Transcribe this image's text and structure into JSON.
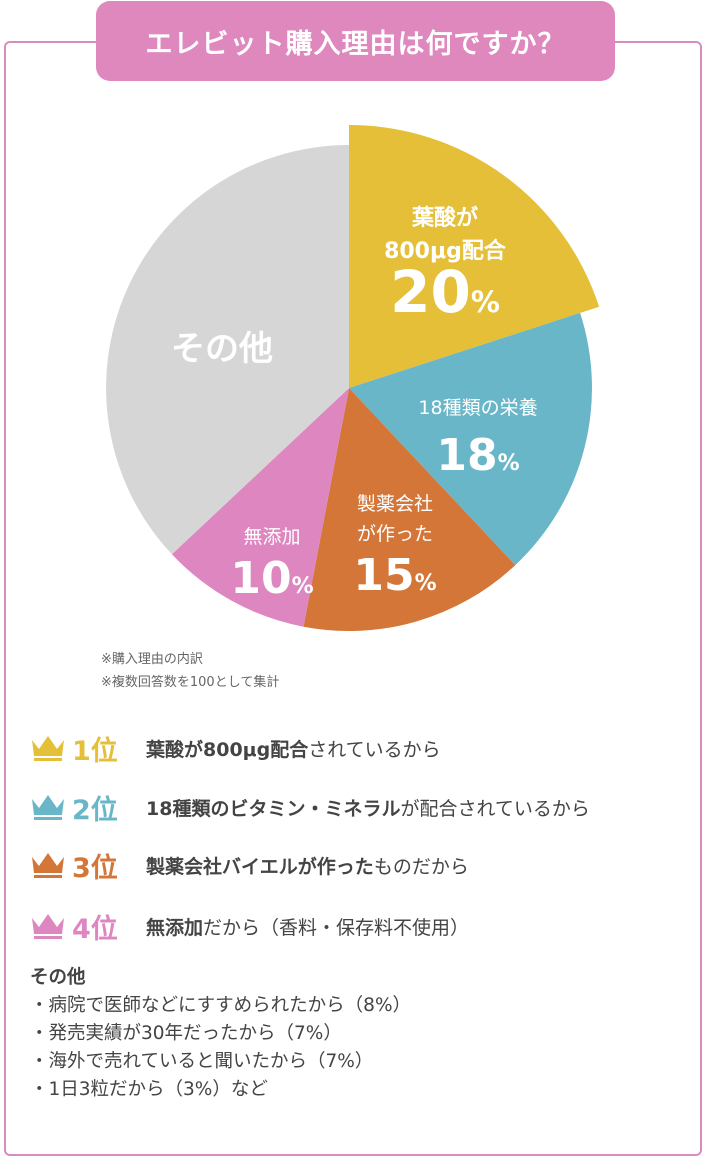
{
  "title": "エレビット購入理由は何ですか？",
  "chart_data": {
    "type": "pie",
    "title": "エレビット購入理由は何ですか？",
    "slices": [
      {
        "label_lines": [
          "葉酸が",
          "800μg配合"
        ],
        "value": 20,
        "value_text": "20",
        "color": "#e5bf38"
      },
      {
        "label_lines": [
          "18種類の栄養"
        ],
        "value": 18,
        "value_text": "18",
        "color": "#69b6c9"
      },
      {
        "label_lines": [
          "製薬会社",
          "が作った"
        ],
        "value": 15,
        "value_text": "15",
        "color": "#d47638"
      },
      {
        "label_lines": [
          "無添加"
        ],
        "value": 10,
        "value_text": "10",
        "color": "#de86c0"
      },
      {
        "label_lines": [
          "その他"
        ],
        "value": 37,
        "value_text": "",
        "color": "#d6d6d6"
      }
    ],
    "percent_symbol": "%"
  },
  "notes": [
    "※購入理由の内訳",
    "※複数回答数を100として集計"
  ],
  "ranking": [
    {
      "rank": "1位",
      "bold": "葉酸が800μg配合",
      "rest": "されているから",
      "color": "#e5bf38",
      "icon": "crown-icon"
    },
    {
      "rank": "2位",
      "bold": "18種類のビタミン・ミネラル",
      "rest": "が配合されているから",
      "color": "#69b6c9",
      "icon": "crown-icon"
    },
    {
      "rank": "3位",
      "bold": "製薬会社バイエルが作った",
      "rest": "ものだから",
      "color": "#d47638",
      "icon": "crown-icon"
    },
    {
      "rank": "4位",
      "bold": "無添加",
      "rest": "だから（香料・保存料不使用）",
      "color": "#de86c0",
      "icon": "crown-icon"
    }
  ],
  "others": {
    "title": "その他",
    "items": [
      "・病院で医師などにすすめられたから（8%）",
      "・発売実績が30年だったから（7%）",
      "・海外で売れていると聞いたから（7%）",
      "・1日3粒だから（3%）など"
    ]
  }
}
